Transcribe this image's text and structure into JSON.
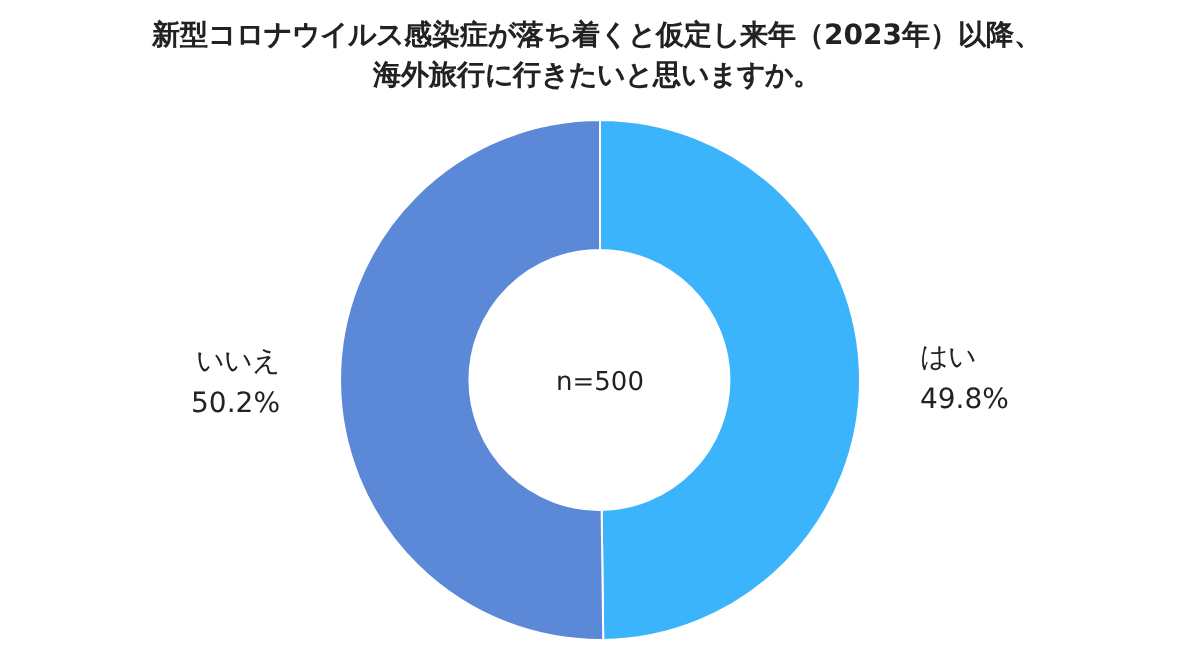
{
  "chart_data": {
    "type": "donut",
    "title": "新型コロナウイルス感染症が落ち着くと仮定し来年（2023年）以降、海外旅行に行きたいと思いますか。",
    "categories": [
      "はい",
      "いいえ"
    ],
    "values": [
      49.8,
      50.2
    ],
    "value_labels": [
      "49.8%",
      "50.2%"
    ],
    "colors": [
      "#3cb4fb",
      "#5b88d7"
    ],
    "annotations": [
      "n=500"
    ]
  }
}
